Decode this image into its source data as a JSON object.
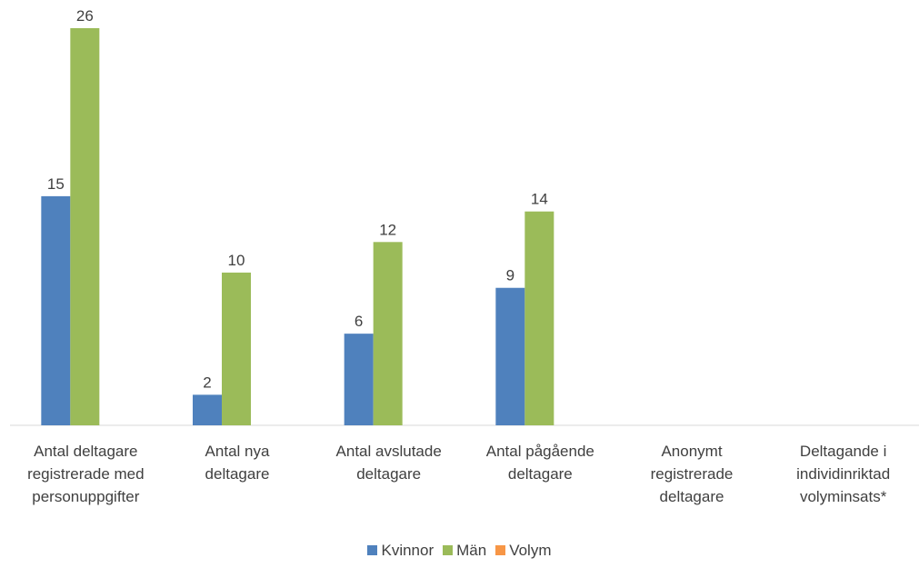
{
  "chart_data": {
    "type": "bar",
    "categories": [
      "Antal  deltagare\nregistrerade med\npersonuppgifter",
      "Antal nya\ndeltagare",
      "Antal avslutade\ndeltagare",
      "Antal pågående\ndeltagare",
      "Anonymt\nregistrerade\ndeltagare",
      "Deltagande i\nindividinriktad\nvolyminsats*"
    ],
    "series": [
      {
        "name": "Kvinnor",
        "color": "#4f81bd",
        "values": [
          15,
          2,
          6,
          9,
          null,
          null
        ]
      },
      {
        "name": "Män",
        "color": "#9bbb59",
        "values": [
          26,
          10,
          12,
          14,
          null,
          null
        ]
      },
      {
        "name": "Volym",
        "color": "#f79646",
        "values": [
          null,
          null,
          null,
          null,
          null,
          null
        ]
      }
    ],
    "ylim": [
      0,
      26
    ],
    "legend": "bottom"
  }
}
